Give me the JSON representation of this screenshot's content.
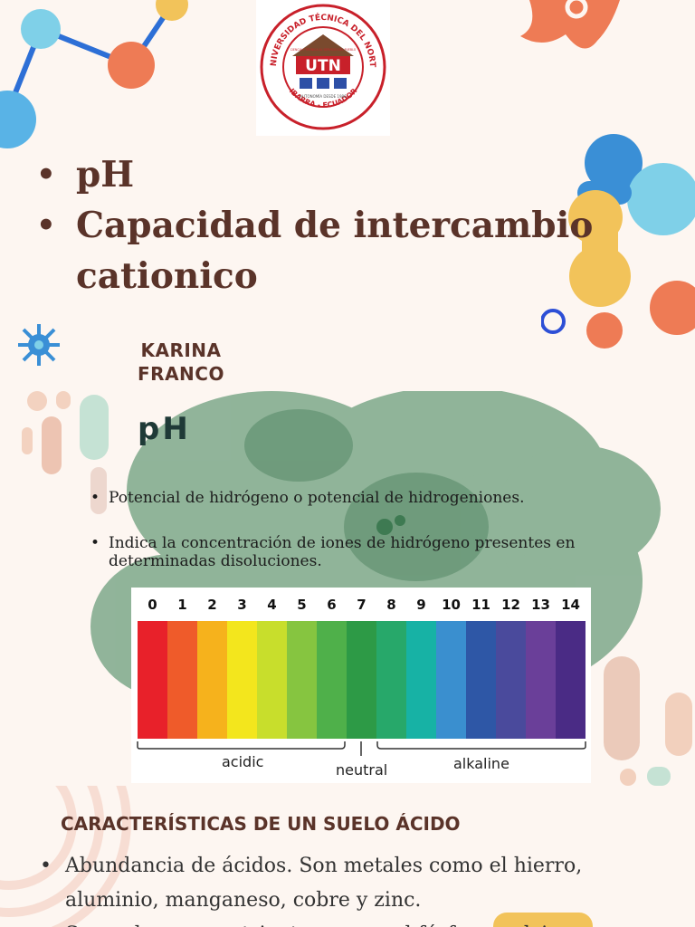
{
  "slide1": {
    "logo": {
      "ring_text": "UNIVERSIDAD TÉCNICA DEL NORTE",
      "motto": "CIENCIA Y TÉCNICA AL SERVICIO DEL PUEBLO",
      "initials": "UTN",
      "founded": "AUTONOMÍA DESDE 1986",
      "location": "IBARRA - ECUADOR"
    },
    "bullets": [
      "pH",
      "Capacidad de intercambio cationico"
    ],
    "author_first": "KARINA",
    "author_last": "FRANCO"
  },
  "slide2": {
    "title": "pH",
    "bullets": [
      "Potencial de hidrógeno o potencial de hidrogeniones.",
      "Indica la concentración de iones de hidrógeno presentes en determinadas disoluciones."
    ],
    "ph_scale": {
      "numbers": [
        "0",
        "1",
        "2",
        "3",
        "4",
        "5",
        "6",
        "7",
        "8",
        "9",
        "10",
        "11",
        "12",
        "13",
        "14"
      ],
      "colors": [
        "#e8212a",
        "#ef5b2a",
        "#f6b21c",
        "#f3e61d",
        "#c8de2c",
        "#86c540",
        "#4fb04a",
        "#2d9a46",
        "#27a86a",
        "#17b2a5",
        "#3a8fcf",
        "#2e57a6",
        "#4a4a9c",
        "#6a3f99",
        "#4a2b85"
      ],
      "acidic_label": "acidic",
      "neutral_label": "neutral",
      "alkaline_label": "alkaline"
    }
  },
  "slide3": {
    "heading": "CARACTERÍSTICAS DE UN SUELO ÁCIDO",
    "bullets": [
      " Abundancia de ácidos. Son metales como el hierro, aluminio, manganeso, cobre y zinc.",
      "Son pobres en nutrientes, como el fósforo, calcio"
    ]
  }
}
